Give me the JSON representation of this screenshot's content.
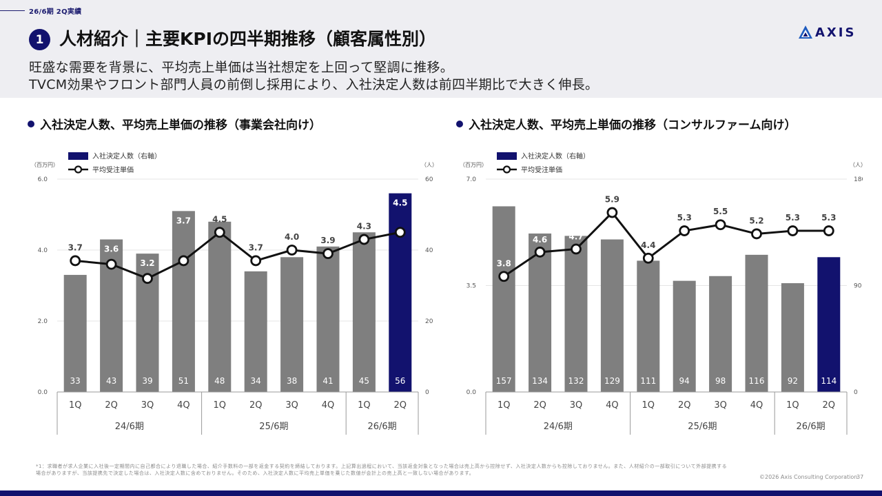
{
  "header": {
    "period_tag": "26/6期 2Q実績",
    "badge_number": "1",
    "title": "人材紹介｜主要KPIの四半期推移（顧客属性別）",
    "logo_text": "AXIS",
    "subtitle_line1": "旺盛な需要を背景に、平均売上単価は当社想定を上回って堅調に推移。",
    "subtitle_line2": "TVCM効果やフロント部門人員の前倒し採用により、入社決定人数は前四半期比で大きく伸長。"
  },
  "sections": [
    {
      "title": "入社決定人数、平均売上単価の推移（事業会社向け）"
    },
    {
      "title": "入社決定人数、平均売上単価の推移（コンサルファーム向け）"
    }
  ],
  "chart_data": [
    {
      "type": "bar+line",
      "title": "入社決定人数、平均売上単価の推移（事業会社向け）",
      "legend": [
        "入社決定人数（右軸）",
        "平均受注単価"
      ],
      "legend_position": "top-left",
      "left_axis_unit": "（百万円）",
      "right_axis_unit": "（人）",
      "left_ticks": [
        "0.0",
        "2.0",
        "4.0",
        "6.0"
      ],
      "left_range": [
        0,
        6
      ],
      "right_ticks": [
        "0",
        "20",
        "40",
        "60"
      ],
      "right_range": [
        0,
        60
      ],
      "categories": [
        "1Q",
        "2Q",
        "3Q",
        "4Q",
        "1Q",
        "2Q",
        "3Q",
        "4Q",
        "1Q",
        "2Q"
      ],
      "groups": [
        {
          "label": "24/6期",
          "count": 4
        },
        {
          "label": "25/6期",
          "count": 4
        },
        {
          "label": "26/6期",
          "count": 2
        }
      ],
      "bars": [
        33,
        43,
        39,
        51,
        48,
        34,
        38,
        41,
        45,
        56
      ],
      "bar_labels": [
        "33",
        "43",
        "39",
        "51",
        "48",
        "34",
        "38",
        "41",
        "45",
        "56"
      ],
      "line": [
        3.7,
        3.6,
        3.2,
        3.7,
        4.5,
        3.7,
        4.0,
        3.9,
        4.3,
        4.5
      ],
      "line_labels": [
        "3.7",
        "3.6",
        "3.2",
        "3.7",
        "4.5",
        "3.7",
        "4.0",
        "3.9",
        "4.3",
        "4.5"
      ],
      "line_label_offsets": [
        "above",
        "above-bar",
        "above-bar",
        "above-bar",
        "above",
        "above",
        "above",
        "above",
        "above",
        "above-bar"
      ],
      "highlight_index": 9,
      "colors": {
        "bar": "#7f7f7f",
        "highlight": "#12126e",
        "line": "#111111"
      }
    },
    {
      "type": "bar+line",
      "title": "入社決定人数、平均売上単価の推移（コンサルファーム向け）",
      "legend": [
        "入社決定人数（右軸）",
        "平均受注単価"
      ],
      "legend_position": "top-left",
      "left_axis_unit": "（百万円）",
      "right_axis_unit": "（人）",
      "left_ticks": [
        "0.0",
        "3.5",
        "7.0"
      ],
      "left_range": [
        0,
        7
      ],
      "right_ticks": [
        "0",
        "90",
        "180"
      ],
      "right_range": [
        0,
        180
      ],
      "categories": [
        "1Q",
        "2Q",
        "3Q",
        "4Q",
        "1Q",
        "2Q",
        "3Q",
        "4Q",
        "1Q",
        "2Q"
      ],
      "groups": [
        {
          "label": "24/6期",
          "count": 4
        },
        {
          "label": "25/6期",
          "count": 4
        },
        {
          "label": "26/6期",
          "count": 2
        }
      ],
      "bars": [
        157,
        134,
        132,
        129,
        111,
        94,
        98,
        116,
        92,
        114
      ],
      "bar_labels": [
        "157",
        "134",
        "132",
        "129",
        "111",
        "94",
        "98",
        "116",
        "92",
        "114"
      ],
      "line": [
        3.8,
        4.6,
        4.7,
        5.9,
        4.4,
        5.3,
        5.5,
        5.2,
        5.3,
        5.3
      ],
      "line_labels": [
        "3.8",
        "4.6",
        "4.7",
        "5.9",
        "4.4",
        "5.3",
        "5.5",
        "5.2",
        "5.3",
        "5.3"
      ],
      "line_label_offsets": [
        "above",
        "above-bar",
        "above-bar",
        "above",
        "above",
        "above",
        "above",
        "above",
        "above",
        "above"
      ],
      "highlight_index": 9,
      "colors": {
        "bar": "#7f7f7f",
        "highlight": "#12126e",
        "line": "#111111"
      }
    }
  ],
  "footnote": "*1：求職者が求人企業に入社後一定期間内に自己都合により退職した場合、紹介手数料の一部を返金する契約を締結しております。上記算出過程において、当該返金対象となった場合は売上高から控除せず、入社決定人数からも控除しておりません。また、人材紹介の一部取引について外部提携する場合がありますが、当該提携先で決定した場合は、入社決定人数に含めておりません。そのため、入社決定人数に平均売上単価を乗じた数値が会計上の売上高と一致しない場合があります。",
  "copyright": "©2026 Axis Consulting Corporation",
  "page_number": "37"
}
